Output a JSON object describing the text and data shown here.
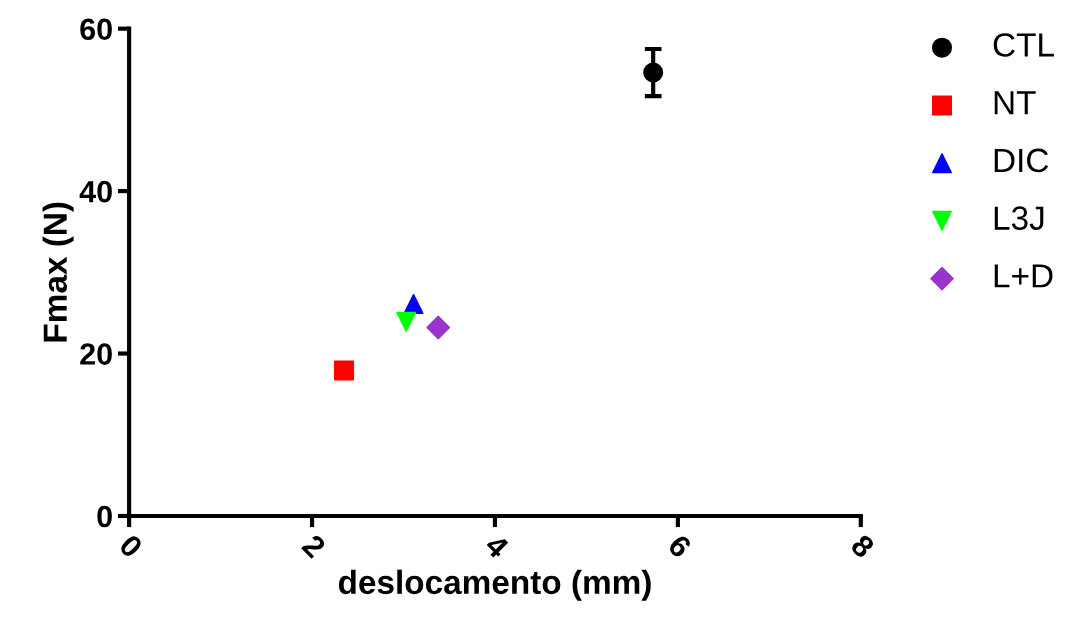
{
  "chart_data": {
    "type": "scatter",
    "xlabel": "deslocamento (mm)",
    "ylabel": "Fmax (N)",
    "xlim": [
      0,
      8
    ],
    "ylim": [
      0,
      60
    ],
    "xticks": [
      0,
      2,
      4,
      6,
      8
    ],
    "yticks": [
      0,
      20,
      40,
      60
    ],
    "grid": false,
    "legend": "right",
    "series": [
      {
        "name": "CTL",
        "color": "#000000",
        "marker": "circle",
        "x": [
          5.73
        ],
        "values": [
          54.6
        ],
        "errors": [
          2.9
        ]
      },
      {
        "name": "NT",
        "color": "#ff0000",
        "marker": "square",
        "x": [
          2.35
        ],
        "values": [
          17.9
        ]
      },
      {
        "name": "DIC",
        "color": "#0000ff",
        "marker": "triangle",
        "x": [
          3.11
        ],
        "values": [
          26.1
        ]
      },
      {
        "name": "L3J",
        "color": "#00ff00",
        "marker": "triangle_down",
        "x": [
          3.03
        ],
        "values": [
          23.9
        ]
      },
      {
        "name": "L+D",
        "color": "#9933cc",
        "marker": "diamond",
        "x": [
          3.38
        ],
        "values": [
          23.2
        ]
      }
    ]
  }
}
